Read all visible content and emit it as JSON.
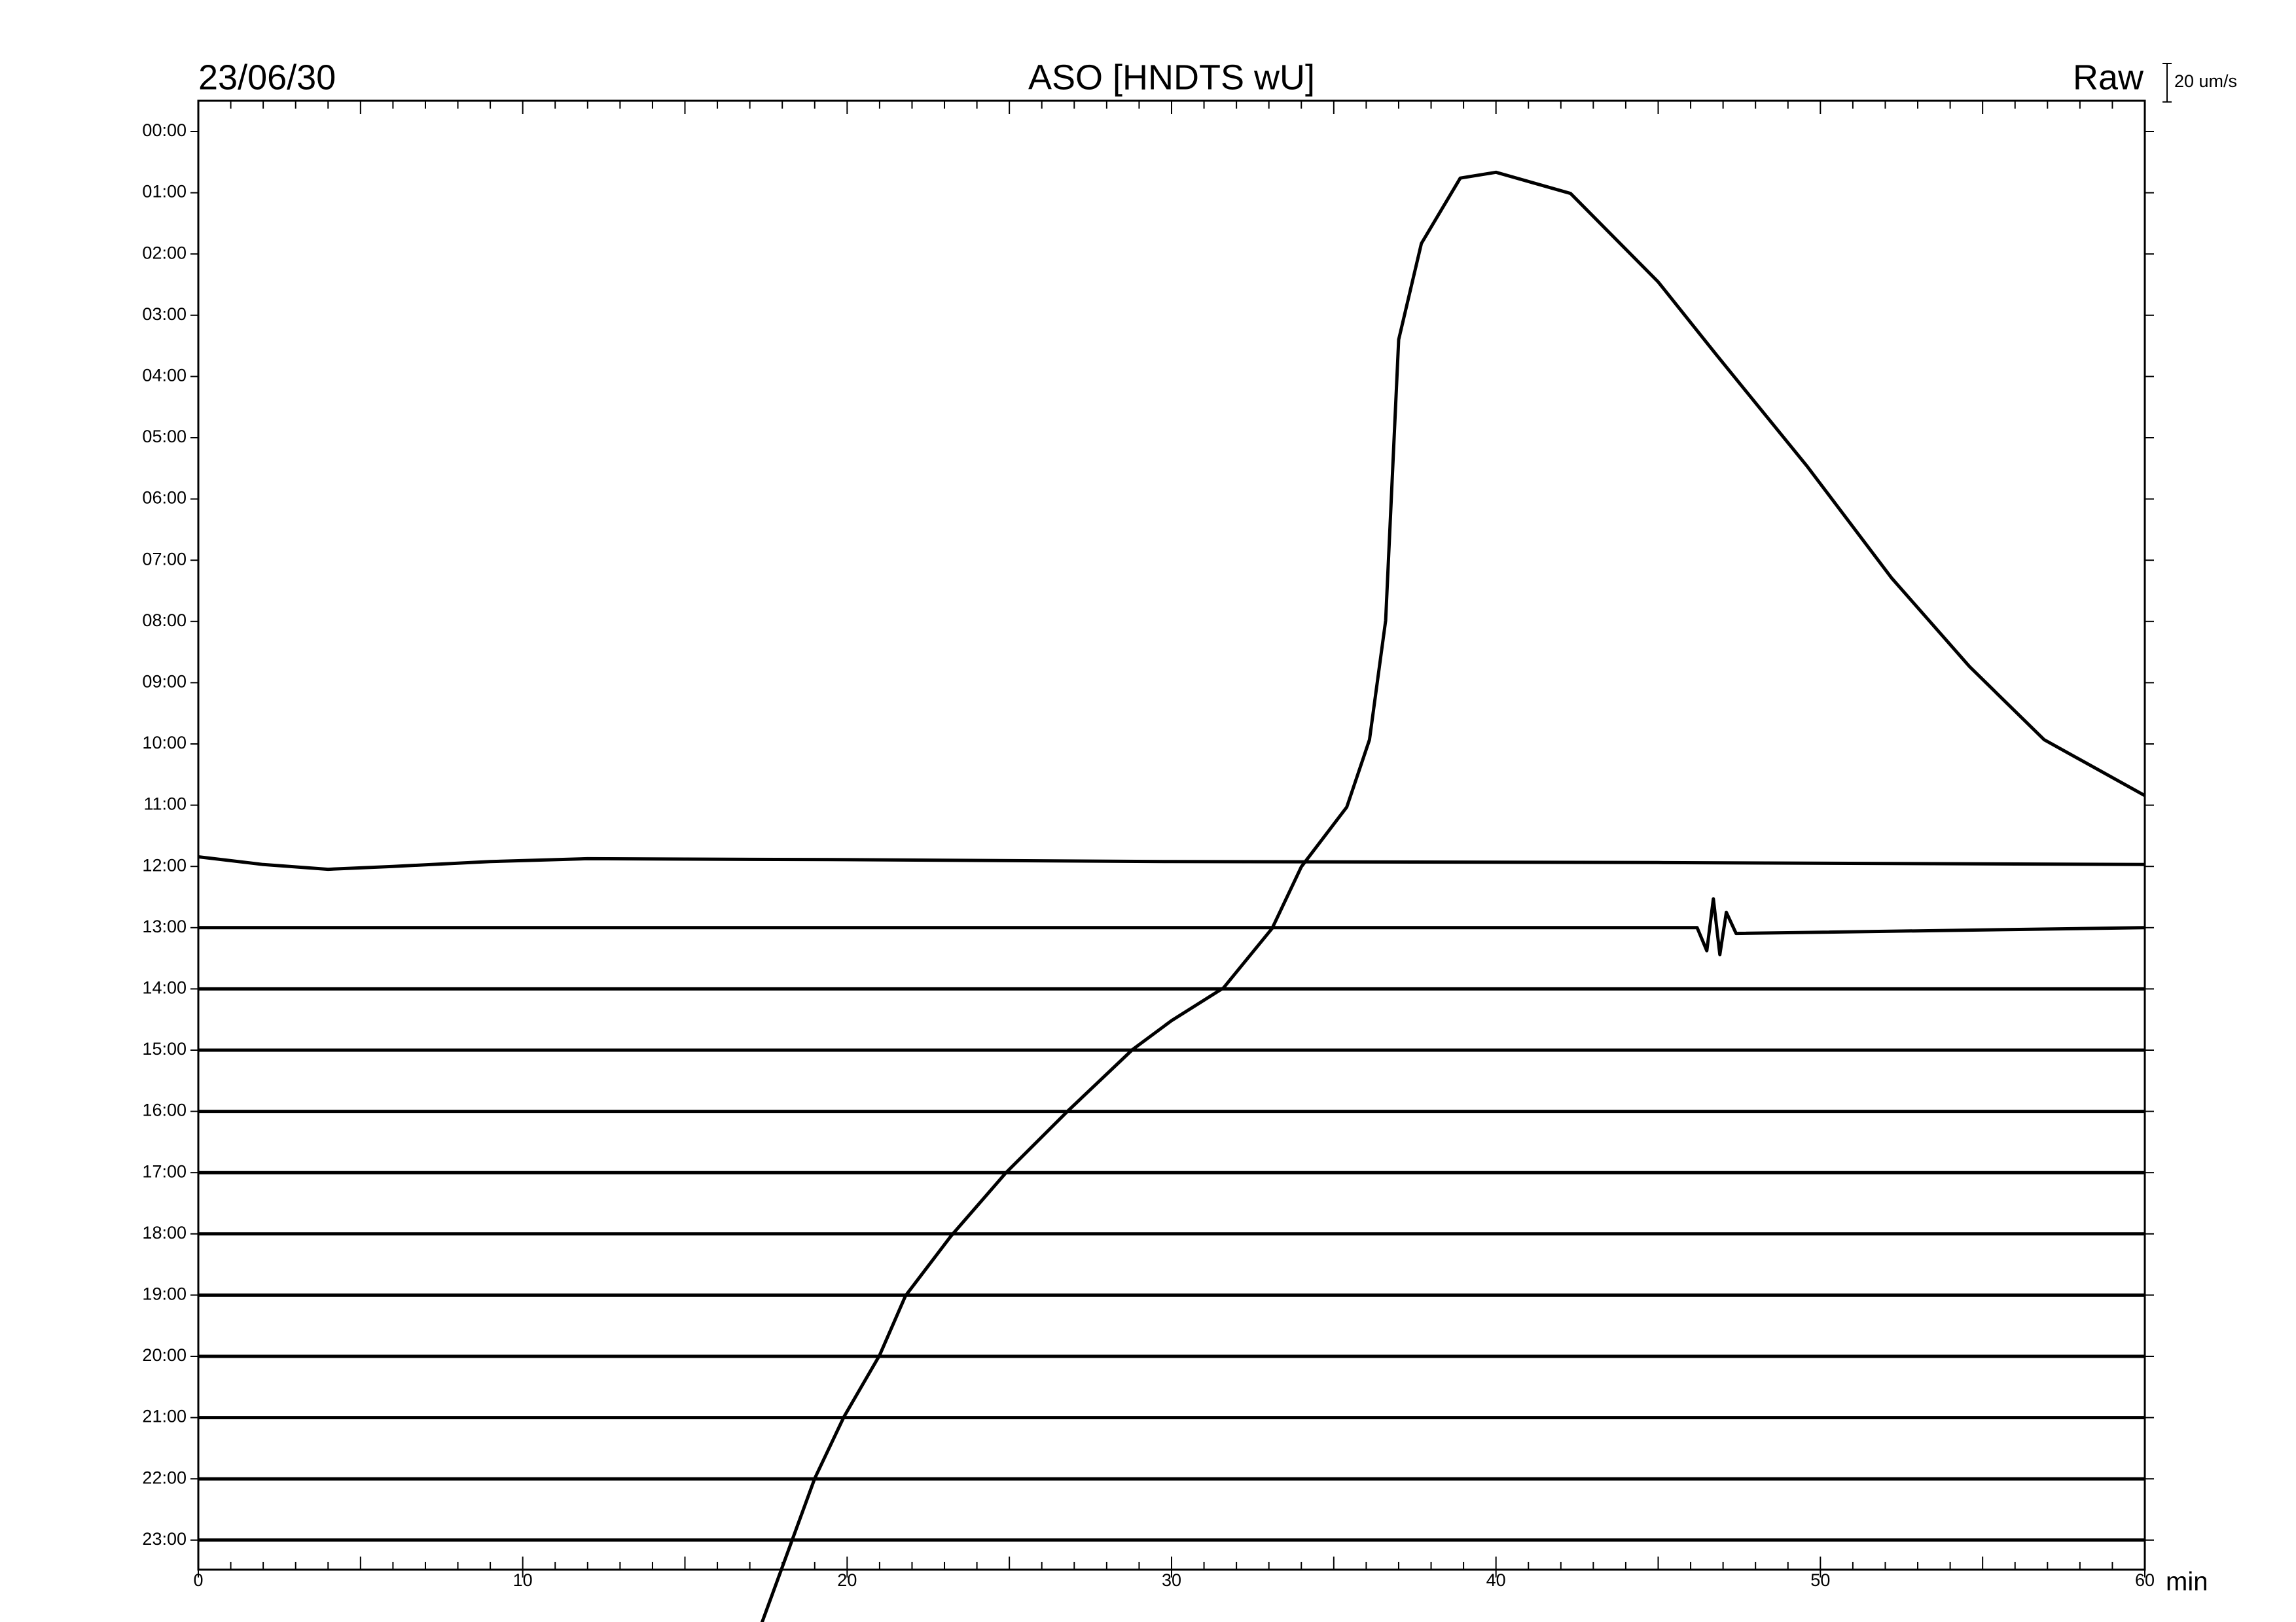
{
  "chart_data": {
    "type": "helicorder",
    "title": "ASO [HNDTS wU]",
    "date": "23/06/30",
    "mode": "Raw",
    "scale_bar": {
      "value": 20,
      "label": "20 um/s"
    },
    "xlabel": "min",
    "xlim": [
      0,
      60
    ],
    "xticks": [
      0,
      10,
      20,
      30,
      40,
      50,
      60
    ],
    "xminorticks": [
      0,
      1,
      2,
      3,
      4,
      5,
      6,
      7,
      8,
      9,
      10,
      11,
      12,
      13,
      14,
      15,
      16,
      17,
      18,
      19,
      20,
      21,
      22,
      23,
      24,
      25,
      26,
      27,
      28,
      29,
      30,
      31,
      32,
      33,
      34,
      35,
      36,
      37,
      38,
      39,
      40,
      41,
      42,
      43,
      44,
      45,
      46,
      47,
      48,
      49,
      50,
      51,
      52,
      53,
      54,
      55,
      56,
      57,
      58,
      59,
      60
    ],
    "categories": [
      "00:00",
      "01:00",
      "02:00",
      "03:00",
      "04:00",
      "05:00",
      "06:00",
      "07:00",
      "08:00",
      "09:00",
      "10:00",
      "11:00",
      "12:00",
      "13:00",
      "14:00",
      "15:00",
      "16:00",
      "17:00",
      "18:00",
      "19:00",
      "20:00",
      "21:00",
      "22:00",
      "23:00"
    ],
    "color": "#000000",
    "series": [
      {
        "x": [],
        "values": []
      },
      {
        "x": [],
        "values": []
      },
      {
        "x": [],
        "values": []
      },
      {
        "x": [],
        "values": []
      },
      {
        "x": [],
        "values": []
      },
      {
        "x": [],
        "values": []
      },
      {
        "x": [],
        "values": []
      },
      {
        "x": [],
        "values": []
      },
      {
        "x": [],
        "values": []
      },
      {
        "x": [],
        "values": []
      },
      {
        "x": [],
        "values": []
      },
      {
        "x": [
          17.2,
          19,
          19.9,
          21,
          21.8,
          23.2,
          24.9,
          26.8,
          28.8,
          30,
          31.6,
          33.1,
          34,
          35.4,
          36.1,
          36.6,
          37,
          37.7,
          38.9,
          40,
          42.3,
          45,
          46.8,
          49.6,
          52.2,
          54.6,
          56.9,
          60
        ],
        "values": [
          -433,
          -350,
          -318,
          -286,
          -255,
          -224,
          -191,
          -159,
          -127,
          -112,
          -95,
          -64,
          -32,
          -1,
          34,
          96,
          242,
          292,
          326,
          329,
          318,
          272,
          234,
          176,
          118,
          72,
          34,
          5
        ]
      },
      {
        "x": [
          0,
          2,
          4,
          6,
          9,
          12,
          20,
          30,
          45,
          60
        ],
        "values": [
          5,
          1,
          -1.5,
          0,
          2.5,
          4,
          3.5,
          2.5,
          2,
          1
        ]
      },
      {
        "x": [
          0,
          46.2,
          46.5,
          46.7,
          46.9,
          47.1,
          47.4,
          60
        ],
        "values": [
          0,
          0,
          -12,
          15,
          -14,
          8,
          -3,
          0
        ]
      },
      {
        "x": [
          0,
          60
        ],
        "values": [
          0,
          0
        ]
      },
      {
        "x": [
          0,
          60
        ],
        "values": [
          0,
          0
        ]
      },
      {
        "x": [
          0,
          60
        ],
        "values": [
          0,
          0
        ]
      },
      {
        "x": [
          0,
          60
        ],
        "values": [
          0,
          0
        ]
      },
      {
        "x": [
          0,
          60
        ],
        "values": [
          0,
          0
        ]
      },
      {
        "x": [
          0,
          60
        ],
        "values": [
          0,
          0
        ]
      },
      {
        "x": [
          0,
          60
        ],
        "values": [
          0,
          0
        ]
      },
      {
        "x": [
          0,
          60
        ],
        "values": [
          0,
          0
        ]
      },
      {
        "x": [
          0,
          60
        ],
        "values": [
          0,
          0
        ]
      },
      {
        "x": [
          0,
          60
        ],
        "values": [
          0,
          0
        ]
      }
    ]
  }
}
